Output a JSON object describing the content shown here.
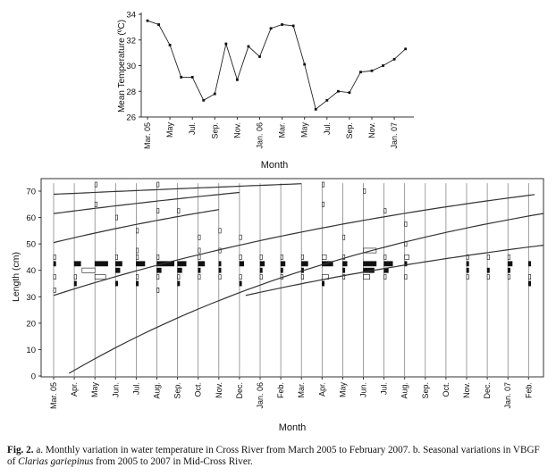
{
  "chart_data": [
    {
      "type": "line",
      "title": "",
      "xlabel": "Month",
      "ylabel": "Mean Temperature (ºC)",
      "ylim": [
        26,
        34
      ],
      "yticks": [
        "26",
        "28",
        "30",
        "32",
        "34"
      ],
      "tick_labels": [
        "Mar. 05",
        "May",
        "Jul.",
        "Sep.",
        "Nov.",
        "Jan. 06",
        "Mar.",
        "May",
        "Jul.",
        "Sep.",
        "Nov.",
        "Jan. 07"
      ],
      "x": [
        "Mar. 05",
        "Apr.",
        "May",
        "Jun.",
        "Jul.",
        "Aug.",
        "Sep.",
        "Oct.",
        "Nov.",
        "Dec.",
        "Jan. 06",
        "Feb.",
        "Mar.",
        "Apr.",
        "May",
        "Jun.",
        "Jul.",
        "Aug.",
        "Sep.",
        "Oct.",
        "Nov.",
        "Dec.",
        "Jan. 07",
        "Feb."
      ],
      "values": [
        33.5,
        33.2,
        31.6,
        29.1,
        29.1,
        27.3,
        27.8,
        31.7,
        28.9,
        31.5,
        30.7,
        32.9,
        33.2,
        33.1,
        30.1,
        26.6,
        27.3,
        28.0,
        27.9,
        29.5,
        29.6,
        30.0,
        30.5,
        31.3
      ],
      "grid": false,
      "legend": "none"
    },
    {
      "type": "line",
      "title": "",
      "xlabel": "Month",
      "ylabel": "Length (cm)",
      "ylim": [
        0,
        75
      ],
      "yticks": [
        "0",
        "10",
        "20",
        "30",
        "40",
        "50",
        "60",
        "70"
      ],
      "tick_labels": [
        "Mar. 05",
        "Apr.",
        "May",
        "Jun.",
        "Jul.",
        "Aug.",
        "Sep.",
        "Oct.",
        "Nov.",
        "Dec.",
        "Jan. 06",
        "Feb.",
        "Mar.",
        "Apr.",
        "May",
        "Jun.",
        "Jul.",
        "Aug.",
        "Sep.",
        "Oct.",
        "Nov.",
        "Dec.",
        "Jan. 07",
        "Feb."
      ],
      "growth_curves": [
        {
          "x_start": 0,
          "x_end": 12,
          "y_start": 68.8,
          "y_end": 72.8
        },
        {
          "x_start": 0,
          "x_end": 9,
          "y_start": 61.5,
          "y_end": 69.5
        },
        {
          "x_start": 0,
          "x_end": 8,
          "y_start": 50.5,
          "y_end": 63.0
        },
        {
          "x_start": 0,
          "x_end": 23.3,
          "y_start": 30.5,
          "y_end": 68.7
        },
        {
          "x_start": 0.75,
          "x_end": 23.7,
          "y_start": 1.0,
          "y_end": 61.5
        },
        {
          "x_start": 9.3,
          "x_end": 23.7,
          "y_start": 30.5,
          "y_end": 49.5
        }
      ],
      "length_frequency": [
        {
          "month": 0,
          "bins": [
            {
              "y": 45,
              "w": 1
            },
            {
              "y": 42.5,
              "w": 1
            },
            {
              "y": 37.5,
              "w": 1
            },
            {
              "y": 32.5,
              "w": 1
            }
          ]
        },
        {
          "month": 1,
          "bins": [
            {
              "y": 42.5,
              "w": 3
            },
            {
              "y": 37.5,
              "w": 1
            },
            {
              "y": 35,
              "w": 1
            }
          ]
        },
        {
          "month": 2,
          "bins": [
            {
              "y": 72.5,
              "w": 1
            },
            {
              "y": 65,
              "w": 1
            },
            {
              "y": 42.5,
              "w": 6
            },
            {
              "y": 40,
              "w": -6
            },
            {
              "y": 37.5,
              "w": 5
            }
          ]
        },
        {
          "month": 3,
          "bins": [
            {
              "y": 60,
              "w": 1
            },
            {
              "y": 45,
              "w": 1
            },
            {
              "y": 42.5,
              "w": 3
            },
            {
              "y": 40,
              "w": 2
            },
            {
              "y": 35,
              "w": 1
            }
          ]
        },
        {
          "month": 4,
          "bins": [
            {
              "y": 55,
              "w": 1
            },
            {
              "y": 47.5,
              "w": 1
            },
            {
              "y": 45,
              "w": 1
            },
            {
              "y": 42.5,
              "w": 4
            },
            {
              "y": 37.5,
              "w": 1
            },
            {
              "y": 35,
              "w": 1
            }
          ]
        },
        {
          "month": 5,
          "bins": [
            {
              "y": 72.5,
              "w": 1
            },
            {
              "y": 62.5,
              "w": 1
            },
            {
              "y": 45,
              "w": 1
            },
            {
              "y": 42.5,
              "w": 8
            },
            {
              "y": 40,
              "w": 2
            },
            {
              "y": 37.5,
              "w": 1
            },
            {
              "y": 32.5,
              "w": 1
            }
          ]
        },
        {
          "month": 6,
          "bins": [
            {
              "y": 62.5,
              "w": 1
            },
            {
              "y": 42.5,
              "w": 4
            },
            {
              "y": 40,
              "w": 2
            },
            {
              "y": 37.5,
              "w": 1
            },
            {
              "y": 35,
              "w": 1
            }
          ]
        },
        {
          "month": 7,
          "bins": [
            {
              "y": 52.5,
              "w": 1
            },
            {
              "y": 47.5,
              "w": 1
            },
            {
              "y": 45,
              "w": 1
            },
            {
              "y": 42.5,
              "w": 3
            },
            {
              "y": 40,
              "w": 1
            },
            {
              "y": 37.5,
              "w": 1
            }
          ]
        },
        {
          "month": 8,
          "bins": [
            {
              "y": 55,
              "w": 1
            },
            {
              "y": 47.5,
              "w": 1
            },
            {
              "y": 42.5,
              "w": 1
            },
            {
              "y": 40,
              "w": 1
            },
            {
              "y": 37.5,
              "w": 1
            }
          ]
        },
        {
          "month": 9,
          "bins": [
            {
              "y": 52.5,
              "w": 1
            },
            {
              "y": 45,
              "w": 1
            },
            {
              "y": 42.5,
              "w": 2
            },
            {
              "y": 37.5,
              "w": 1
            },
            {
              "y": 35,
              "w": 1
            }
          ]
        },
        {
          "month": 10,
          "bins": [
            {
              "y": 45,
              "w": 1
            },
            {
              "y": 42.5,
              "w": 2
            },
            {
              "y": 40,
              "w": 1
            },
            {
              "y": 37.5,
              "w": 1
            }
          ]
        },
        {
          "month": 11,
          "bins": [
            {
              "y": 45,
              "w": 1
            },
            {
              "y": 42.5,
              "w": 2
            },
            {
              "y": 40,
              "w": 1
            },
            {
              "y": 37.5,
              "w": 1
            }
          ]
        },
        {
          "month": 12,
          "bins": [
            {
              "y": 45,
              "w": 1
            },
            {
              "y": 42.5,
              "w": 3
            },
            {
              "y": 40,
              "w": 1
            },
            {
              "y": 37.5,
              "w": 1
            }
          ]
        },
        {
          "month": 13,
          "bins": [
            {
              "y": 72.5,
              "w": 1
            },
            {
              "y": 65,
              "w": 1
            },
            {
              "y": 45,
              "w": 2
            },
            {
              "y": 42.5,
              "w": 5
            },
            {
              "y": 37.5,
              "w": 3
            },
            {
              "y": 35,
              "w": 1
            }
          ]
        },
        {
          "month": 14,
          "bins": [
            {
              "y": 52.5,
              "w": 1
            },
            {
              "y": 45,
              "w": 1
            },
            {
              "y": 42.5,
              "w": 2
            },
            {
              "y": 40,
              "w": 1
            },
            {
              "y": 37.5,
              "w": 1
            }
          ]
        },
        {
          "month": 15,
          "bins": [
            {
              "y": 70,
              "w": 1
            },
            {
              "y": 47.5,
              "w": 6
            },
            {
              "y": 42.5,
              "w": 6
            },
            {
              "y": 40,
              "w": 5
            },
            {
              "y": 37.5,
              "w": 3
            }
          ]
        },
        {
          "month": 16,
          "bins": [
            {
              "y": 62.5,
              "w": 1
            },
            {
              "y": 45,
              "w": 1
            },
            {
              "y": 42.5,
              "w": 4
            },
            {
              "y": 40,
              "w": 2
            },
            {
              "y": 37.5,
              "w": 1
            }
          ]
        },
        {
          "month": 17,
          "bins": [
            {
              "y": 57.5,
              "w": 1
            },
            {
              "y": 50,
              "w": 1
            },
            {
              "y": 45,
              "w": 2
            },
            {
              "y": 42.5,
              "w": 1
            },
            {
              "y": 37.5,
              "w": 1
            }
          ]
        },
        {
          "month": 20,
          "bins": [
            {
              "y": 45,
              "w": 1
            },
            {
              "y": 42.5,
              "w": 1
            },
            {
              "y": 40,
              "w": 1
            },
            {
              "y": 37.5,
              "w": 1
            }
          ]
        },
        {
          "month": 21,
          "bins": [
            {
              "y": 45,
              "w": 1
            },
            {
              "y": 40,
              "w": 1
            },
            {
              "y": 37.5,
              "w": 1
            }
          ]
        },
        {
          "month": 22,
          "bins": [
            {
              "y": 45,
              "w": 1
            },
            {
              "y": 42.5,
              "w": 2
            },
            {
              "y": 40,
              "w": 1
            },
            {
              "y": 37.5,
              "w": 1
            }
          ]
        },
        {
          "month": 23,
          "bins": [
            {
              "y": 42.5,
              "w": 1
            },
            {
              "y": 37.5,
              "w": 1
            },
            {
              "y": 35,
              "w": 1
            }
          ]
        }
      ],
      "grid": false,
      "legend": "none"
    }
  ],
  "caption": {
    "label": "Fig. 2.",
    "text_a": " a. Monthly variation in water temperature in Cross River from March 2005 to February 2007. b. Seasonal variations in VBGF of ",
    "species": "Clarias gariepinus",
    "text_b": " from 2005 to 2007 in Mid-Cross River."
  }
}
